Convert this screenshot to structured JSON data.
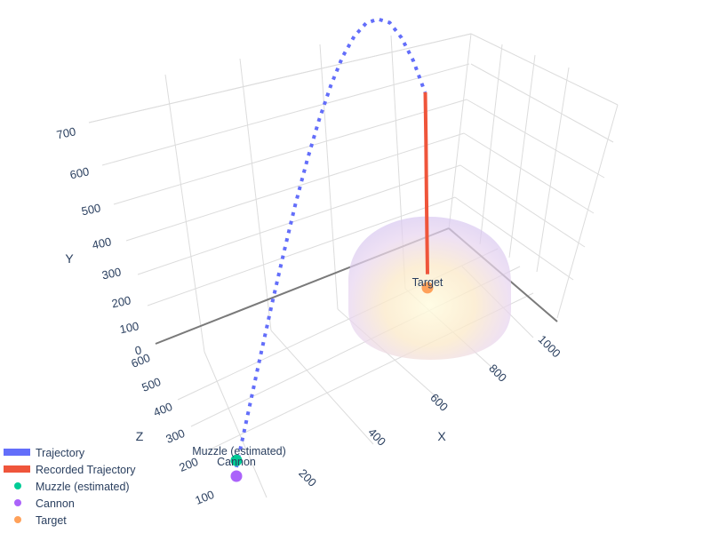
{
  "chart_data": {
    "type": "scatter3d",
    "title": "",
    "axes": {
      "x": {
        "label": "X",
        "ticks": [
          200,
          400,
          600,
          800,
          1000
        ]
      },
      "y": {
        "label": "Y",
        "ticks": [
          0,
          100,
          200,
          300,
          400,
          500,
          600,
          700
        ]
      },
      "z": {
        "label": "Z",
        "ticks": [
          100,
          200,
          300,
          400,
          500,
          600
        ]
      }
    },
    "series": [
      {
        "name": "Trajectory",
        "mode": "lines",
        "dash": "dot",
        "color": "#636efa",
        "points": [
          [
            100,
            20,
            100
          ],
          [
            164,
            118,
            164
          ],
          [
            228,
            215,
            228
          ],
          [
            292,
            310,
            292
          ],
          [
            356,
            400,
            356
          ],
          [
            420,
            485,
            420
          ],
          [
            484,
            560,
            484
          ],
          [
            548,
            625,
            548
          ],
          [
            612,
            678,
            612
          ],
          [
            676,
            718,
            676
          ],
          [
            740,
            740,
            740
          ],
          [
            804,
            745,
            804
          ],
          [
            868,
            730,
            868
          ],
          [
            932,
            698,
            932
          ],
          [
            996,
            640,
            996
          ],
          [
            1060,
            565,
            1060
          ],
          [
            1124,
            470,
            1124
          ]
        ]
      },
      {
        "name": "Recorded Trajectory",
        "mode": "lines",
        "color": "#ef553b",
        "points": [
          [
            1125,
            470,
            1125
          ],
          [
            1129,
            360,
            1129
          ],
          [
            1131,
            250,
            1131
          ],
          [
            1134,
            150,
            1134
          ],
          [
            1137,
            60,
            1137
          ]
        ]
      },
      {
        "name": "Muzzle (estimated)",
        "mode": "markers+text",
        "text": "Muzzle (estimated)",
        "color": "#00cc96",
        "points": [
          [
            100,
            35,
            100
          ]
        ]
      },
      {
        "name": "Cannon",
        "mode": "markers+text",
        "text": "Cannon",
        "color": "#ab63fa",
        "points": [
          [
            100,
            0,
            100
          ]
        ]
      },
      {
        "name": "Target",
        "mode": "markers+text",
        "text": "Target",
        "color": "#ffa15a",
        "points": [
          [
            1137,
            30,
            1137
          ]
        ]
      }
    ],
    "surface": {
      "type": "hemisphere",
      "center": [
        1137,
        0,
        1137
      ],
      "colors": [
        "#ab63fa",
        "#fff7b5"
      ]
    },
    "legend_position": "bottom-left"
  }
}
